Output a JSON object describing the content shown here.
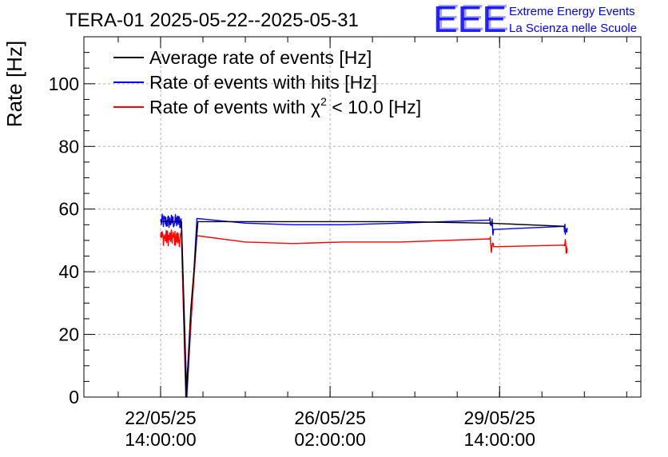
{
  "chart_data": {
    "type": "line",
    "title": "TERA-01 2025-05-22--2025-05-31",
    "ylabel": "Rate [Hz]",
    "xlabel": "",
    "ylim": [
      0,
      115
    ],
    "y_ticks": [
      "0",
      "20",
      "40",
      "60",
      "80",
      "100"
    ],
    "x_ticks": [
      {
        "date": "22/05/25",
        "time": "14:00:00"
      },
      {
        "date": "26/05/25",
        "time": "02:00:00"
      },
      {
        "date": "29/05/25",
        "time": "14:00:00"
      }
    ],
    "grid": true,
    "legend_position": "top-left",
    "legend": {
      "avg_label": "Average rate of events [Hz]",
      "hits_label": "Rate of events with hits [Hz]",
      "chi_prefix": "Rate of events with ",
      "chi_symbol": "χ",
      "chi_sup": "2",
      "chi_suffix": " < 10.0 [Hz]"
    },
    "series": [
      {
        "name": "Average rate of events [Hz]",
        "color": "#000000",
        "x": [
          "2025-05-22 14:00",
          "2025-05-23 00:20",
          "2025-05-23 02:40",
          "2025-05-23 05:00",
          "2025-05-23 08:30",
          "2025-05-27 13:00",
          "2025-05-29 09:00",
          "2025-05-30 22:30"
        ],
        "y": [
          56,
          56,
          0,
          28,
          56,
          56,
          55.5,
          54.5
        ]
      },
      {
        "name": "Rate of events with hits [Hz]",
        "color": "#0000ff",
        "noise": 1.2,
        "x": [
          "2025-05-22 14:00",
          "2025-05-23 00:20",
          "2025-05-23 03:00",
          "2025-05-23 08:00",
          "2025-05-24 08:00",
          "2025-05-25 08:00",
          "2025-05-26 08:00",
          "2025-05-27 13:00",
          "2025-05-29 09:00",
          "2025-05-29 09:30",
          "2025-05-29 11:00",
          "2025-05-30 22:00",
          "2025-05-30 23:30"
        ],
        "y": [
          56,
          56,
          0,
          57,
          55.5,
          55,
          55,
          55.5,
          56.5,
          56,
          53.5,
          54.5,
          54
        ]
      },
      {
        "name": "Rate of events with χ2 < 10.0 [Hz]",
        "color": "#ff0000",
        "noise": 1.3,
        "x": [
          "2025-05-22 14:00",
          "2025-05-23 00:20",
          "2025-05-23 02:30",
          "2025-05-23 08:00",
          "2025-05-24 08:00",
          "2025-05-25 08:00",
          "2025-05-26 08:00",
          "2025-05-27 13:00",
          "2025-05-29 09:00",
          "2025-05-29 09:30",
          "2025-05-29 11:00",
          "2025-05-30 22:00",
          "2025-05-30 23:30"
        ],
        "y": [
          51,
          50.5,
          0,
          51.5,
          49.5,
          49,
          49.5,
          49.5,
          50.5,
          49,
          48,
          48.5,
          47.5
        ]
      }
    ]
  },
  "logo": {
    "mark": "EEE",
    "line1": "Extreme Energy Events",
    "line2": "La Scienza nelle Scuole",
    "color": "#0000ff"
  }
}
